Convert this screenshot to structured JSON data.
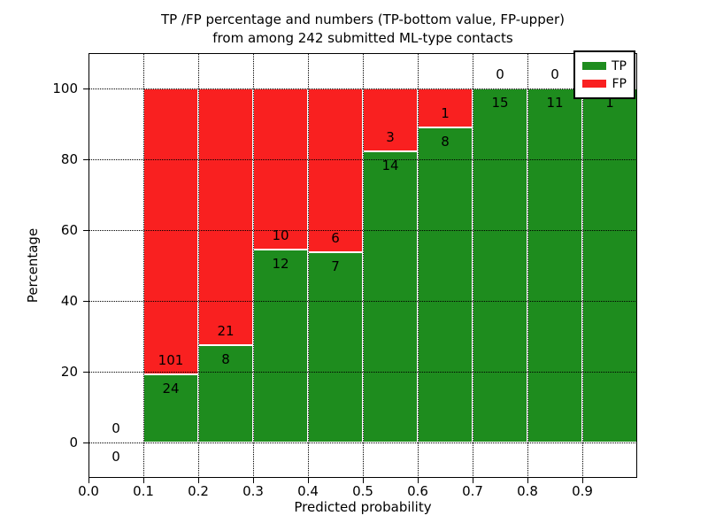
{
  "title": {
    "line1": "TP /FP percentage and numbers (TP-bottom value, FP-upper)",
    "line2": "from among 242 submitted ML-type contacts"
  },
  "chart_data": {
    "type": "bar",
    "stacked": true,
    "title": "TP /FP percentage and numbers (TP-bottom value, FP-upper) from among 242 submitted ML-type contacts",
    "xlabel": "Predicted probability",
    "ylabel": "Percentage",
    "xlim": [
      0.0,
      1.0
    ],
    "ylim": [
      -10,
      110
    ],
    "grid": "dotted",
    "bin_edges": [
      0.0,
      0.1,
      0.2,
      0.3,
      0.4,
      0.5,
      0.6,
      0.7,
      0.8,
      0.9,
      1.0
    ],
    "x_tick_labels": [
      "0.0",
      "0.1",
      "0.2",
      "0.3",
      "0.4",
      "0.5",
      "0.6",
      "0.7",
      "0.8",
      "0.9"
    ],
    "y_ticks": [
      0,
      20,
      40,
      60,
      80,
      100
    ],
    "series": [
      {
        "name": "TP",
        "color": "#1e8c1e",
        "values": [
          0,
          24,
          8,
          12,
          7,
          14,
          8,
          15,
          11,
          1
        ]
      },
      {
        "name": "FP",
        "color": "#f92020",
        "values": [
          0,
          101,
          21,
          10,
          6,
          3,
          1,
          0,
          0,
          0
        ]
      }
    ],
    "tp_pct": [
      null,
      19.2,
      27.6,
      54.5,
      53.8,
      82.4,
      88.9,
      100,
      100,
      100
    ],
    "bar_edge_color": "#ffffff",
    "legend": {
      "position": "upper right",
      "entries": [
        "TP",
        "FP"
      ]
    }
  }
}
